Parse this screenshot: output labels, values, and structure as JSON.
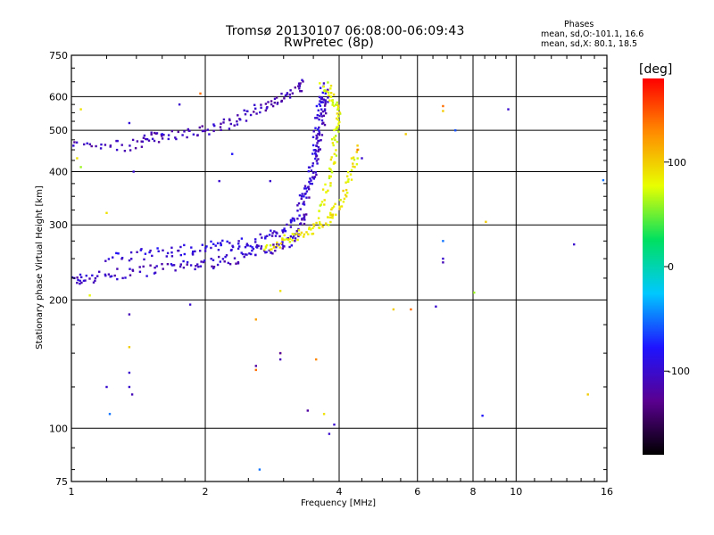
{
  "header": {
    "title_line1": "Tromsø 20130107 06:08:00-06:09:43",
    "title_line2": "RwPretec (8p)",
    "phases_title": "Phases",
    "phases_o": "mean, sd,O:-101.1, 16.6",
    "phases_x": "mean, sd,X:  80.1, 18.5"
  },
  "colorbar": {
    "unit_label": "[deg]",
    "tick_labels": [
      "100",
      "0",
      "-100"
    ],
    "colors": [
      "#000000",
      "#5a0090",
      "#1e14ff",
      "#00c8ff",
      "#00e060",
      "#e8ff00",
      "#ff8c00",
      "#ff0000"
    ]
  },
  "chart_data": {
    "type": "scatter",
    "title": "Tromsø 20130107 06:08:00-06:09:43",
    "subtitle": "RwPretec (8p)",
    "xlabel": "Frequency [MHz]",
    "ylabel": "Stationary phase Virtual Height [km]",
    "x_scale": "log",
    "y_scale": "log",
    "xlim": [
      1,
      16
    ],
    "ylim": [
      75,
      750
    ],
    "x_ticks": [
      1,
      2,
      4,
      6,
      8,
      10,
      16
    ],
    "y_ticks": [
      75,
      100,
      200,
      300,
      400,
      500,
      600,
      750
    ],
    "x_tick_labels": [
      "1",
      "2",
      "4",
      "6",
      "8",
      "10",
      "16"
    ],
    "y_tick_labels": [
      "75",
      "100",
      "200",
      "300",
      "400",
      "500",
      "600",
      "750"
    ],
    "grid": true,
    "color_scale": {
      "label": "[deg]",
      "min": -180,
      "max": 180,
      "ticks": [
        100,
        0,
        -100
      ]
    },
    "traces": [
      {
        "name": "",
        "phase_deg": -105,
        "points": [
          [
            1.0,
            222
          ],
          [
            1.05,
            224
          ],
          [
            1.15,
            227
          ],
          [
            1.3,
            230
          ],
          [
            1.5,
            235
          ],
          [
            1.7,
            238
          ],
          [
            1.9,
            241
          ],
          [
            2.1,
            245
          ],
          [
            2.3,
            249
          ],
          [
            2.5,
            255
          ],
          [
            2.7,
            262
          ],
          [
            2.9,
            268
          ],
          [
            3.1,
            275
          ],
          [
            3.25,
            290
          ],
          [
            3.35,
            320
          ],
          [
            3.45,
            370
          ],
          [
            3.55,
            420
          ],
          [
            3.6,
            470
          ],
          [
            3.65,
            520
          ],
          [
            3.7,
            570
          ],
          [
            3.75,
            620
          ]
        ]
      },
      {
        "name": "",
        "phase_deg": -95,
        "points": [
          [
            1.2,
            250
          ],
          [
            1.4,
            255
          ],
          [
            1.6,
            258
          ],
          [
            1.8,
            262
          ],
          [
            2.0,
            266
          ],
          [
            2.2,
            268
          ],
          [
            2.4,
            270
          ],
          [
            2.6,
            275
          ],
          [
            2.8,
            282
          ],
          [
            3.0,
            292
          ],
          [
            3.15,
            310
          ],
          [
            3.3,
            340
          ],
          [
            3.4,
            380
          ],
          [
            3.5,
            430
          ],
          [
            3.55,
            490
          ],
          [
            3.6,
            540
          ],
          [
            3.65,
            590
          ],
          [
            3.7,
            630
          ]
        ]
      },
      {
        "name": "",
        "phase_deg": -110,
        "points": [
          [
            1.0,
            470
          ],
          [
            1.2,
            460
          ],
          [
            1.4,
            462
          ],
          [
            1.5,
            480
          ],
          [
            1.6,
            485
          ],
          [
            1.8,
            492
          ],
          [
            2.0,
            500
          ],
          [
            2.2,
            515
          ],
          [
            2.4,
            535
          ],
          [
            2.6,
            555
          ],
          [
            2.8,
            578
          ],
          [
            3.0,
            600
          ],
          [
            3.2,
            625
          ],
          [
            3.35,
            640
          ]
        ]
      },
      {
        "name": "",
        "phase_deg": 85,
        "points": [
          [
            2.7,
            268
          ],
          [
            2.9,
            272
          ],
          [
            3.1,
            278
          ],
          [
            3.3,
            285
          ],
          [
            3.5,
            293
          ],
          [
            3.7,
            302
          ],
          [
            3.85,
            318
          ],
          [
            4.0,
            338
          ],
          [
            4.15,
            370
          ],
          [
            4.3,
            410
          ],
          [
            4.4,
            455
          ]
        ]
      },
      {
        "name": "",
        "phase_deg": 80,
        "points": [
          [
            3.6,
            320
          ],
          [
            3.75,
            360
          ],
          [
            3.85,
            400
          ],
          [
            3.9,
            450
          ],
          [
            3.95,
            500
          ],
          [
            3.98,
            550
          ],
          [
            3.9,
            590
          ],
          [
            3.8,
            620
          ],
          [
            3.65,
            640
          ]
        ]
      }
    ],
    "scattered_points": [
      [
        1.05,
        560,
        90
      ],
      [
        1.03,
        430,
        90
      ],
      [
        1.05,
        410,
        60
      ],
      [
        1.1,
        205,
        80
      ],
      [
        1.2,
        320,
        90
      ],
      [
        1.27,
        472,
        -100
      ],
      [
        1.35,
        520,
        -95
      ],
      [
        1.38,
        400,
        -100
      ],
      [
        1.35,
        185,
        -110
      ],
      [
        1.35,
        155,
        100
      ],
      [
        1.35,
        135,
        -100
      ],
      [
        1.37,
        120,
        -110
      ],
      [
        1.35,
        125,
        -100
      ],
      [
        1.2,
        125,
        -100
      ],
      [
        1.22,
        108,
        -50
      ],
      [
        1.85,
        195,
        -100
      ],
      [
        1.75,
        575,
        -100
      ],
      [
        1.95,
        610,
        140
      ],
      [
        2.6,
        180,
        120
      ],
      [
        2.6,
        140,
        -120
      ],
      [
        2.6,
        137,
        140
      ],
      [
        2.65,
        80,
        -50
      ],
      [
        2.8,
        380,
        -100
      ],
      [
        2.95,
        150,
        140
      ],
      [
        2.95,
        145,
        -110
      ],
      [
        2.95,
        150,
        -120
      ],
      [
        2.95,
        210,
        90
      ],
      [
        3.4,
        110,
        -120
      ],
      [
        3.55,
        145,
        130
      ],
      [
        3.7,
        108,
        90
      ],
      [
        3.8,
        97,
        -100
      ],
      [
        3.9,
        102,
        -100
      ],
      [
        4.4,
        450,
        140
      ],
      [
        4.5,
        430,
        -100
      ],
      [
        5.3,
        190,
        100
      ],
      [
        5.65,
        490,
        100
      ],
      [
        5.8,
        190,
        140
      ],
      [
        6.6,
        193,
        -100
      ],
      [
        6.85,
        570,
        140
      ],
      [
        6.85,
        555,
        100
      ],
      [
        6.85,
        250,
        -100
      ],
      [
        6.85,
        245,
        -110
      ],
      [
        6.85,
        275,
        -50
      ],
      [
        7.3,
        500,
        -60
      ],
      [
        8.05,
        208,
        60
      ],
      [
        8.4,
        107,
        -80
      ],
      [
        8.55,
        305,
        100
      ],
      [
        9.6,
        560,
        -100
      ],
      [
        13.5,
        270,
        -100
      ],
      [
        14.5,
        120,
        100
      ],
      [
        15.7,
        382,
        -50
      ],
      [
        2.15,
        380,
        -100
      ],
      [
        1.6,
        490,
        -80
      ],
      [
        2.3,
        440,
        -80
      ]
    ]
  }
}
